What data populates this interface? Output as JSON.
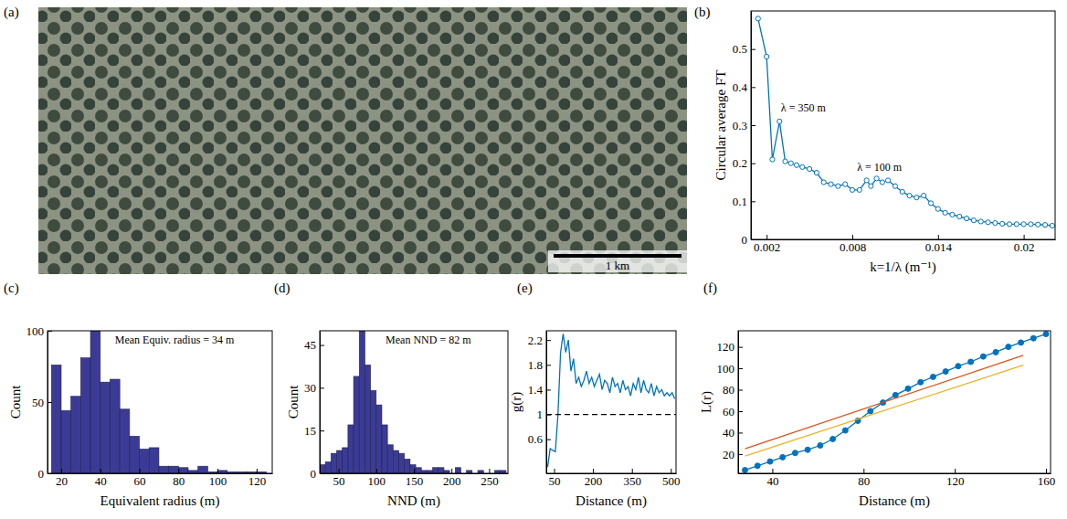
{
  "chart_data": [
    {
      "type": "image",
      "panel_label": "(a)",
      "scale_bar": {
        "label": "1 km"
      }
    },
    {
      "type": "line",
      "panel_label": "(b)",
      "x_label": "k=1/λ (m⁻¹)",
      "y_label": "Circular average FT",
      "xlim": [
        0.0009,
        0.0222
      ],
      "xticks": [
        0.002,
        0.008,
        0.014,
        0.02
      ],
      "ylim": [
        0,
        0.6
      ],
      "yticks": [
        0,
        0.1,
        0.2,
        0.3,
        0.4,
        0.5
      ],
      "series": [
        {
          "color": "#0072BD",
          "marker": "open-circle",
          "line_style": "solid",
          "x": [
            0.0014,
            0.002,
            0.0024,
            0.0029,
            0.0033,
            0.0037,
            0.0041,
            0.0045,
            0.005,
            0.0055,
            0.006,
            0.0065,
            0.007,
            0.0075,
            0.008,
            0.0085,
            0.009,
            0.0093,
            0.0097,
            0.0101,
            0.0105,
            0.011,
            0.0115,
            0.012,
            0.0125,
            0.013,
            0.0135,
            0.014,
            0.0145,
            0.015,
            0.0155,
            0.016,
            0.0165,
            0.017,
            0.0175,
            0.018,
            0.0185,
            0.019,
            0.0195,
            0.02,
            0.0205,
            0.021,
            0.0215,
            0.022
          ],
          "values": [
            0.58,
            0.48,
            0.21,
            0.31,
            0.205,
            0.2,
            0.195,
            0.19,
            0.185,
            0.175,
            0.15,
            0.145,
            0.14,
            0.145,
            0.13,
            0.13,
            0.155,
            0.14,
            0.16,
            0.15,
            0.155,
            0.14,
            0.125,
            0.115,
            0.11,
            0.115,
            0.095,
            0.08,
            0.07,
            0.065,
            0.06,
            0.055,
            0.05,
            0.047,
            0.045,
            0.043,
            0.041,
            0.04,
            0.04,
            0.04,
            0.04,
            0.039,
            0.038,
            0.036
          ]
        }
      ],
      "annotations": [
        {
          "text": "λ = 350 m",
          "x": 0.003,
          "y": 0.335
        },
        {
          "text": "λ = 100 m",
          "x": 0.0099,
          "y": 0.18
        }
      ]
    },
    {
      "type": "histogram",
      "panel_label": "(c)",
      "x_label": "Equivalent radius (m)",
      "y_label": "Count",
      "color": "#3b3b96",
      "bins": [
        15,
        20,
        25,
        30,
        35,
        40,
        45,
        50,
        55,
        60,
        65,
        70,
        75,
        80,
        85,
        90,
        95,
        100,
        105,
        110,
        115,
        120,
        125
      ],
      "counts": [
        76,
        44,
        54,
        81,
        100,
        64,
        66,
        45,
        26,
        17,
        18,
        5,
        5,
        4,
        2,
        5,
        1,
        2,
        1,
        1,
        1,
        1
      ],
      "xlim": [
        13,
        128
      ],
      "xticks": [
        20,
        40,
        60,
        80,
        100,
        120
      ],
      "ylim": [
        0,
        100
      ],
      "yticks": [
        0,
        50,
        100
      ],
      "annotations": [
        {
          "text": "Mean Equiv. radius = 34 m"
        }
      ]
    },
    {
      "type": "histogram",
      "panel_label": "(d)",
      "x_label": "NND (m)",
      "y_label": "Count",
      "color": "#3b3b96",
      "bins": [
        25,
        32.5,
        40,
        47.5,
        55,
        62.5,
        70,
        77.5,
        85,
        92.5,
        100,
        107.5,
        115,
        122.5,
        130,
        137.5,
        145,
        152.5,
        160,
        167.5,
        175,
        182.5,
        190,
        197.5,
        205,
        212.5,
        220,
        227.5,
        235,
        242.5,
        250,
        257.5,
        265,
        272.5
      ],
      "counts": [
        3,
        4,
        7,
        8,
        9,
        17,
        34,
        50,
        38,
        29,
        24,
        17,
        10,
        8,
        7,
        5,
        3,
        2,
        1,
        1,
        2,
        2,
        1,
        0,
        2,
        0,
        1,
        0,
        1,
        0,
        0,
        1,
        1
      ],
      "xlim": [
        25,
        275
      ],
      "xticks": [
        50,
        100,
        150,
        200,
        250
      ],
      "ylim": [
        0,
        50
      ],
      "yticks": [
        0,
        15,
        30,
        45
      ],
      "annotations": [
        {
          "text": "Mean NND = 82 m"
        }
      ]
    },
    {
      "type": "line",
      "panel_label": "(e)",
      "x_label": "Distance (m)",
      "y_label": "g(r)",
      "xlim": [
        20,
        520
      ],
      "xticks": [
        50,
        200,
        350,
        500
      ],
      "ylim": [
        0.05,
        2.35
      ],
      "yticks": [
        0.6,
        1,
        1.4,
        1.8,
        2.2
      ],
      "series": [
        {
          "color": "#0072BD",
          "line_style": "solid",
          "x": [
            25,
            35,
            45,
            55,
            65,
            75,
            85,
            95,
            105,
            115,
            125,
            135,
            145,
            155,
            165,
            175,
            185,
            195,
            205,
            215,
            225,
            235,
            245,
            255,
            265,
            275,
            285,
            295,
            305,
            315,
            325,
            335,
            345,
            355,
            365,
            375,
            385,
            395,
            405,
            415,
            425,
            435,
            445,
            455,
            465,
            475,
            485,
            495,
            505,
            515
          ],
          "values": [
            0.15,
            0.45,
            0.42,
            0.4,
            1.0,
            2.0,
            2.3,
            2.0,
            2.2,
            1.7,
            1.9,
            1.5,
            1.6,
            1.45,
            1.55,
            1.7,
            1.5,
            1.6,
            1.45,
            1.55,
            1.65,
            1.4,
            1.55,
            1.5,
            1.35,
            1.6,
            1.45,
            1.5,
            1.35,
            1.55,
            1.4,
            1.45,
            1.3,
            1.5,
            1.4,
            1.6,
            1.35,
            1.55,
            1.4,
            1.35,
            1.5,
            1.3,
            1.45,
            1.35,
            1.4,
            1.3,
            1.35,
            1.3,
            1.35,
            1.25
          ]
        },
        {
          "color": "#000000",
          "line_style": "dashed",
          "x": [
            20,
            520
          ],
          "values": [
            1,
            1
          ]
        }
      ]
    },
    {
      "type": "line",
      "panel_label": "(f)",
      "x_label": "Distance (m)",
      "y_label": "L(r)",
      "xlim": [
        25,
        162
      ],
      "xticks": [
        40,
        80,
        120,
        160
      ],
      "ylim": [
        2,
        135
      ],
      "yticks": [
        20,
        40,
        60,
        80,
        100,
        120
      ],
      "series": [
        {
          "color": "#0072BD",
          "marker": "circle",
          "line_style": "solid",
          "x": [
            28,
            33.5,
            39,
            44.5,
            50,
            55.5,
            61,
            66.5,
            72,
            77.5,
            83,
            88.5,
            94,
            99.5,
            105,
            110.5,
            116,
            121.5,
            127,
            132.5,
            138,
            143.5,
            149,
            154.5,
            160
          ],
          "values": [
            5,
            9,
            13,
            17,
            21,
            24,
            28,
            34,
            42,
            51,
            60,
            68,
            75,
            81,
            87,
            92,
            97,
            102,
            106,
            111,
            115,
            120,
            124,
            128,
            132
          ]
        },
        {
          "color": "#D95319",
          "line_style": "solid",
          "x": [
            28,
            150
          ],
          "values": [
            25,
            112
          ]
        },
        {
          "color": "#EDB120",
          "line_style": "solid",
          "x": [
            28,
            150
          ],
          "values": [
            18,
            103
          ]
        }
      ]
    }
  ]
}
